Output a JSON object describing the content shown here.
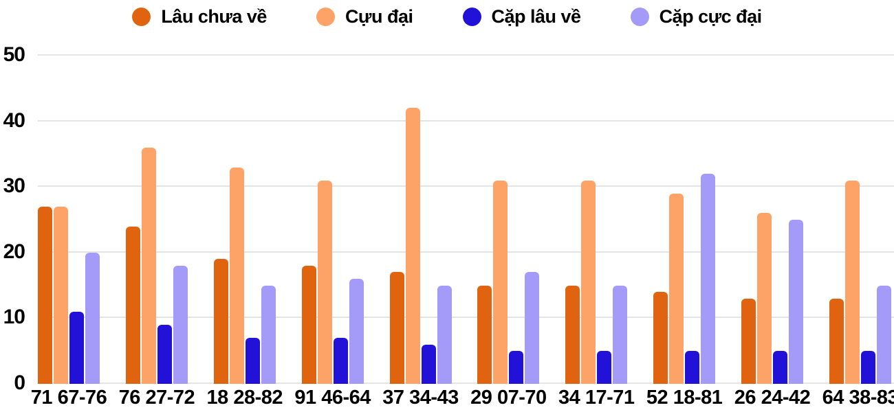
{
  "chart_data": {
    "type": "bar",
    "title": "",
    "xlabel": "",
    "ylabel": "",
    "ylim": [
      0,
      50
    ],
    "y_ticks": [
      0,
      10,
      20,
      30,
      40,
      50
    ],
    "grid": true,
    "legend_position": "top",
    "categories": [
      "71 67-76",
      "76 27-72",
      "18 28-82",
      "91 46-64",
      "37 34-43",
      "29 07-70",
      "34 17-71",
      "52 18-81",
      "26 24-42",
      "64 38-83"
    ],
    "series": [
      {
        "name": "Lâu chưa về",
        "color": "#e0640f",
        "values": [
          27,
          24,
          19,
          18,
          17,
          15,
          15,
          14,
          13,
          13
        ]
      },
      {
        "name": "Cựu đại",
        "color": "#fda368",
        "values": [
          27,
          36,
          33,
          31,
          42,
          31,
          31,
          29,
          26,
          31
        ]
      },
      {
        "name": "Cặp lâu về",
        "color": "#2212d8",
        "values": [
          11,
          9,
          7,
          7,
          6,
          5,
          5,
          5,
          5,
          5
        ]
      },
      {
        "name": "Cặp cực đại",
        "color": "#a49bf8",
        "values": [
          20,
          18,
          15,
          16,
          15,
          17,
          15,
          32,
          25,
          15
        ]
      }
    ],
    "colors": {
      "gridline": "#e4e4e4",
      "text": "#000000",
      "background": "#ffffff"
    }
  }
}
